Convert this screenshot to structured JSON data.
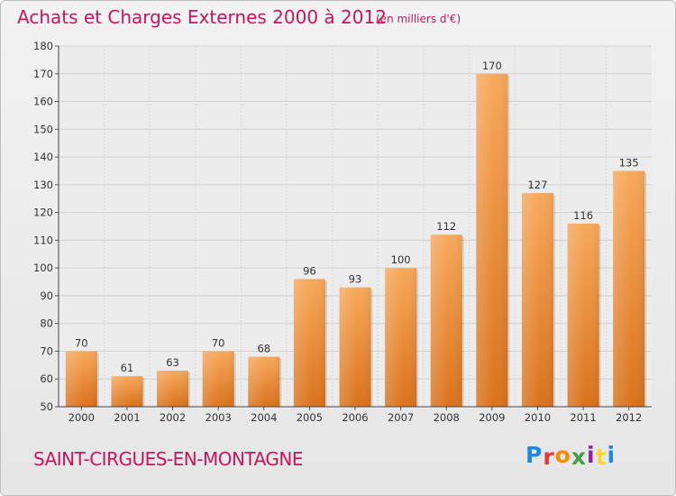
{
  "header": {
    "title": "Achats et Charges Externes 2000 à 2012",
    "subtitle": "(en milliers d'€)"
  },
  "footer": {
    "commune": "SAINT-CIRGUES-EN-MONTAGNE",
    "logo": {
      "letters": [
        "P",
        "r",
        "o",
        "x",
        "i",
        "t",
        "i"
      ],
      "colors": [
        "#1e88e5",
        "#e53935",
        "#fb8c00",
        "#43a047",
        "#8e24aa",
        "#fdd835",
        "#1e88e5"
      ]
    }
  },
  "chart_data": {
    "type": "bar",
    "categories": [
      "2000",
      "2001",
      "2002",
      "2003",
      "2004",
      "2005",
      "2006",
      "2007",
      "2008",
      "2009",
      "2010",
      "2011",
      "2012"
    ],
    "values": [
      70,
      61,
      63,
      70,
      68,
      96,
      93,
      100,
      112,
      170,
      127,
      116,
      135
    ],
    "ylim": [
      50,
      180
    ],
    "yticks": [
      50,
      60,
      70,
      80,
      90,
      100,
      110,
      120,
      130,
      140,
      150,
      160,
      170,
      180
    ],
    "grid": true,
    "bar_color": "#f0913e"
  }
}
